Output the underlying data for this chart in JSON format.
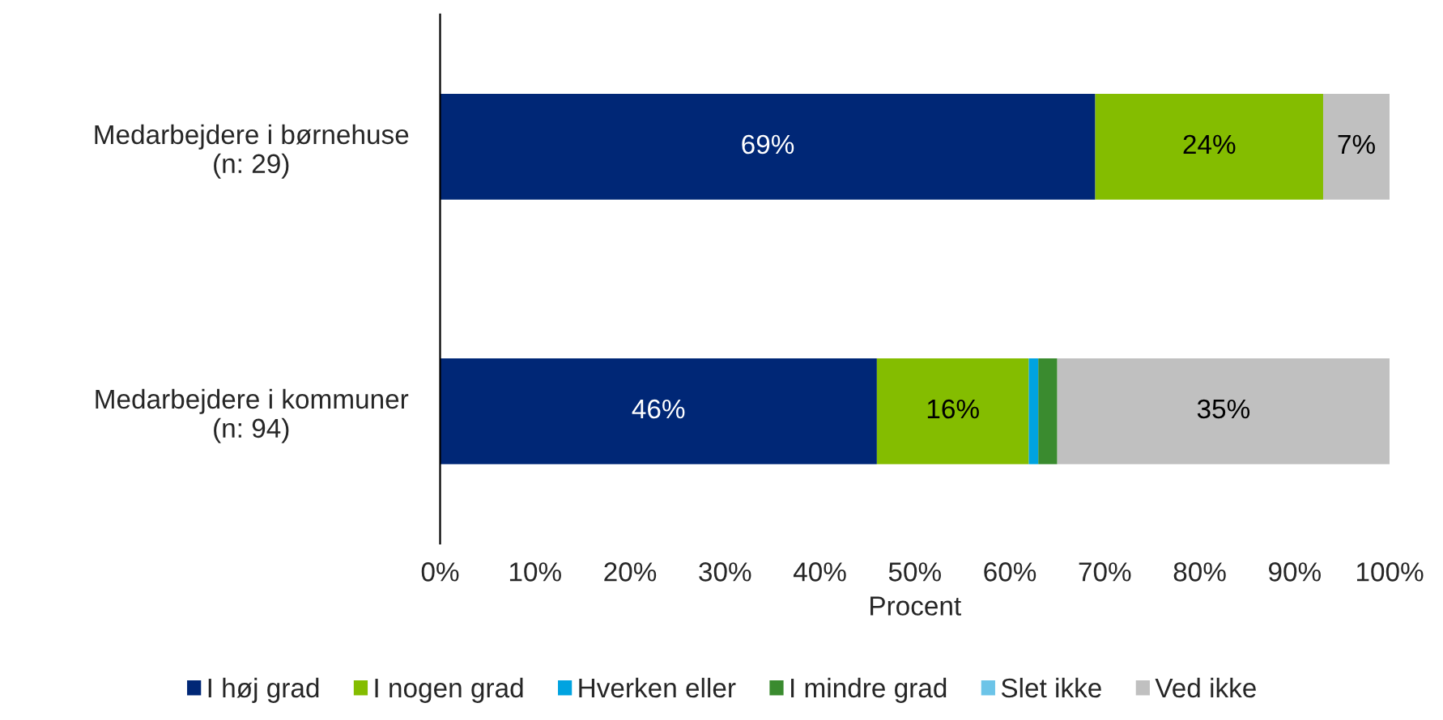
{
  "chart_data": {
    "type": "bar",
    "orientation": "horizontal",
    "stacked": true,
    "xlabel": "Procent",
    "categories": [
      "Medarbejdere i børnehuse\n(n: 29)",
      "Medarbejdere i kommuner\n(n: 94)"
    ],
    "series": [
      {
        "name": "I høj grad",
        "color": "#002776",
        "values": [
          69,
          46
        ],
        "value_labels": [
          "69%",
          "46%"
        ]
      },
      {
        "name": "I nogen grad",
        "color": "#84bd00",
        "values": [
          24,
          16
        ],
        "value_labels": [
          "24%",
          "16%"
        ]
      },
      {
        "name": "Hverken eller",
        "color": "#00a3e0",
        "values": [
          0,
          1
        ],
        "value_labels": [
          null,
          null
        ]
      },
      {
        "name": "I mindre grad",
        "color": "#3a8b2f",
        "values": [
          0,
          2
        ],
        "value_labels": [
          null,
          null
        ]
      },
      {
        "name": "Slet ikke",
        "color": "#6cc4e8",
        "values": [
          0,
          0
        ],
        "value_labels": [
          null,
          null
        ]
      },
      {
        "name": "Ved ikke",
        "color": "#c0c0c0",
        "values": [
          7,
          35
        ],
        "value_labels": [
          "7%",
          "35%"
        ]
      }
    ],
    "xlim": [
      0,
      100
    ],
    "xticks": [
      {
        "value": 0,
        "label": "0%"
      },
      {
        "value": 10,
        "label": "10%"
      },
      {
        "value": 20,
        "label": "20%"
      },
      {
        "value": 30,
        "label": "30%"
      },
      {
        "value": 40,
        "label": "40%"
      },
      {
        "value": 50,
        "label": "50%"
      },
      {
        "value": 60,
        "label": "60%"
      },
      {
        "value": 70,
        "label": "70%"
      },
      {
        "value": 80,
        "label": "80%"
      },
      {
        "value": 90,
        "label": "90%"
      },
      {
        "value": 100,
        "label": "100%"
      }
    ],
    "grid": false,
    "legend": "bottom"
  }
}
